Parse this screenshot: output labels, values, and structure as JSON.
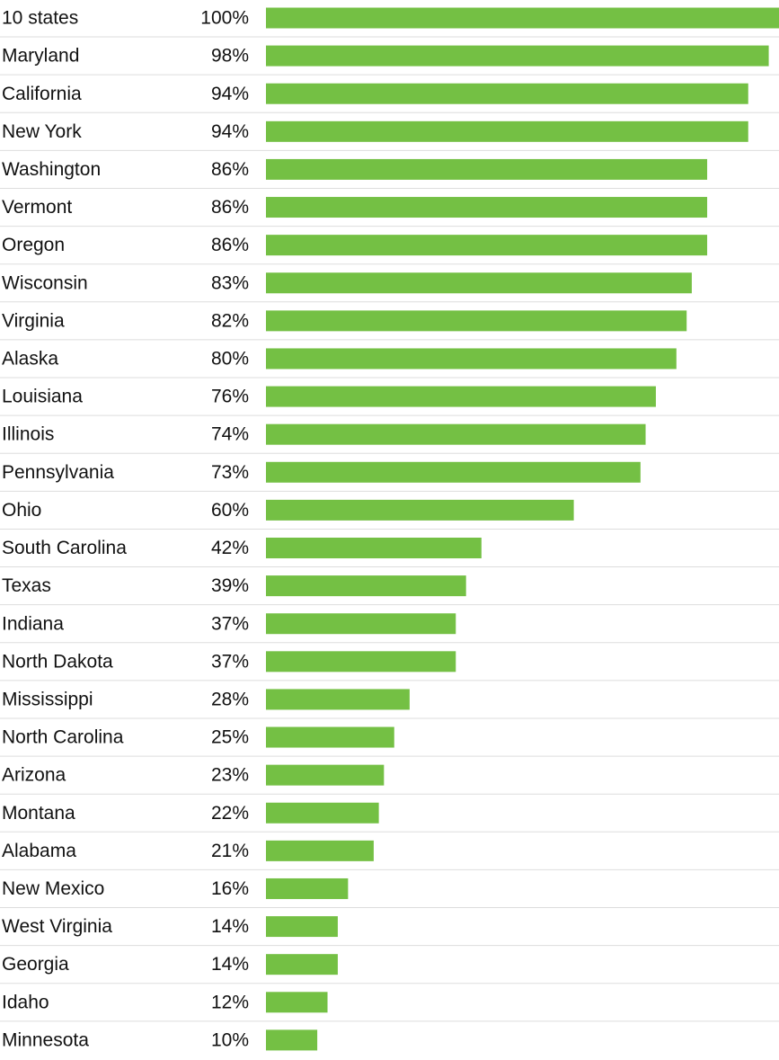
{
  "chart_data": {
    "type": "bar",
    "orientation": "horizontal",
    "color": "#74c044",
    "categories": [
      "10 states",
      "Maryland",
      "California",
      "New York",
      "Washington",
      "Vermont",
      "Oregon",
      "Wisconsin",
      "Virginia",
      "Alaska",
      "Louisiana",
      "Illinois",
      "Pennsylvania",
      "Ohio",
      "South Carolina",
      "Texas",
      "Indiana",
      "North Dakota",
      "Mississippi",
      "North Carolina",
      "Arizona",
      "Montana",
      "Alabama",
      "New Mexico",
      "West Virginia",
      "Georgia",
      "Idaho",
      "Minnesota"
    ],
    "values": [
      100,
      98,
      94,
      94,
      86,
      86,
      86,
      83,
      82,
      80,
      76,
      74,
      73,
      60,
      42,
      39,
      37,
      37,
      28,
      25,
      23,
      22,
      21,
      16,
      14,
      14,
      12,
      10
    ],
    "value_labels": [
      "100%",
      "98%",
      "94%",
      "94%",
      "86%",
      "86%",
      "86%",
      "83%",
      "82%",
      "80%",
      "76%",
      "74%",
      "73%",
      "60%",
      "42%",
      "39%",
      "37%",
      "37%",
      "28%",
      "25%",
      "23%",
      "22%",
      "21%",
      "16%",
      "14%",
      "14%",
      "12%",
      "10%"
    ]
  }
}
